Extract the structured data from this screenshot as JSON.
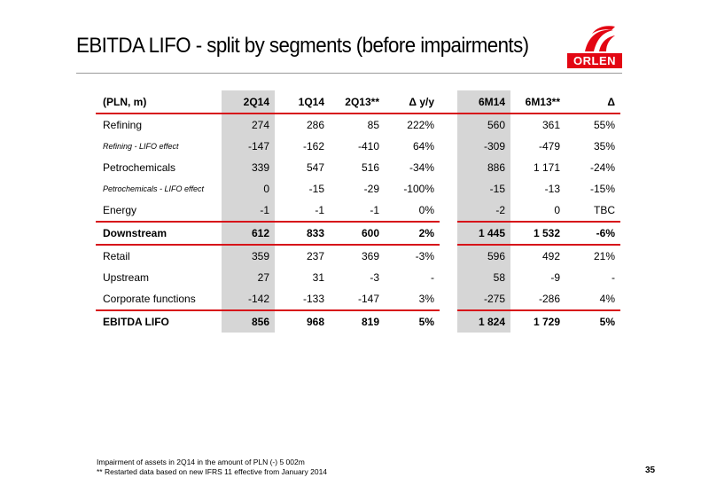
{
  "title": "EBITDA LIFO - split by segments (before impairments)",
  "logo_text": "ORLEN",
  "colors": {
    "accent": "#d7141a",
    "shade": "#d6d6d6"
  },
  "table": {
    "headers": [
      "(PLN, m)",
      "2Q14",
      "1Q14",
      "2Q13**",
      "Δ y/y",
      "6M14",
      "6M13**",
      "Δ"
    ],
    "rows": [
      {
        "label": "Refining",
        "values": [
          "274",
          "286",
          "85",
          "222%",
          "560",
          "361",
          "55%"
        ]
      },
      {
        "label": "Refining - LIFO effect",
        "values": [
          "-147",
          "-162",
          "-410",
          "64%",
          "-309",
          "-479",
          "35%"
        ]
      },
      {
        "label": "Petrochemicals",
        "values": [
          "339",
          "547",
          "516",
          "-34%",
          "886",
          "1 171",
          "-24%"
        ]
      },
      {
        "label": "Petrochemicals - LIFO effect",
        "values": [
          "0",
          "-15",
          "-29",
          "-100%",
          "-15",
          "-13",
          "-15%"
        ]
      },
      {
        "label": "Energy",
        "values": [
          "-1",
          "-1",
          "-1",
          "0%",
          "-2",
          "0",
          "TBC"
        ]
      },
      {
        "label": "Downstream",
        "values": [
          "612",
          "833",
          "600",
          "2%",
          "1 445",
          "1 532",
          "-6%"
        ]
      },
      {
        "label": "Retail",
        "values": [
          "359",
          "237",
          "369",
          "-3%",
          "596",
          "492",
          "21%"
        ]
      },
      {
        "label": "Upstream",
        "values": [
          "27",
          "31",
          "-3",
          "-",
          "58",
          "-9",
          "-"
        ]
      },
      {
        "label": "Corporate functions",
        "values": [
          "-142",
          "-133",
          "-147",
          "3%",
          "-275",
          "-286",
          "4%"
        ]
      },
      {
        "label": "EBITDA LIFO",
        "values": [
          "856",
          "968",
          "819",
          "5%",
          "1 824",
          "1 729",
          "5%"
        ]
      }
    ]
  },
  "footnotes": [
    "Impairment of assets in 2Q14 in the amount of PLN (-) 5 002m",
    "** Restarted data based on new IFRS 11 effective from January 2014"
  ],
  "page_number": "35"
}
